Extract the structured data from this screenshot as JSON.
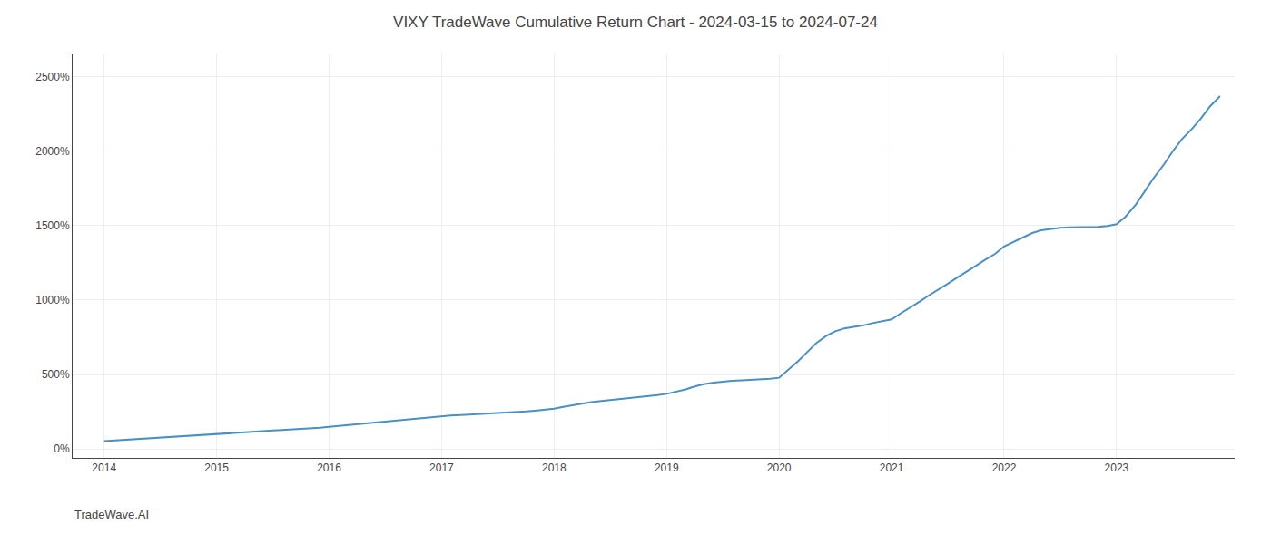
{
  "chart_data": {
    "type": "line",
    "title": "VIXY TradeWave Cumulative Return Chart - 2024-03-15 to 2024-07-24",
    "annotations": [
      "TradeWave.AI"
    ],
    "color": "#4a90c4",
    "grid": true,
    "xlim": [
      2013.72,
      2024.05
    ],
    "xticks": [
      2014,
      2015,
      2016,
      2017,
      2018,
      2019,
      2020,
      2021,
      2022,
      2023
    ],
    "ylim": [
      -60,
      2650
    ],
    "yticks": [
      {
        "value": 0,
        "label": "0%"
      },
      {
        "value": 500,
        "label": "500%"
      },
      {
        "value": 1000,
        "label": "1000%"
      },
      {
        "value": 1500,
        "label": "1500%"
      },
      {
        "value": 2000,
        "label": "2000%"
      },
      {
        "value": 2500,
        "label": "2500%"
      }
    ],
    "x": [
      2014.0,
      2014.08,
      2014.17,
      2014.25,
      2014.33,
      2014.42,
      2014.5,
      2014.58,
      2014.67,
      2014.75,
      2014.83,
      2014.92,
      2015.0,
      2015.08,
      2015.17,
      2015.25,
      2015.33,
      2015.42,
      2015.5,
      2015.58,
      2015.67,
      2015.75,
      2015.83,
      2015.92,
      2016.0,
      2016.08,
      2016.17,
      2016.25,
      2016.33,
      2016.42,
      2016.5,
      2016.58,
      2016.67,
      2016.75,
      2016.83,
      2016.92,
      2017.0,
      2017.08,
      2017.17,
      2017.25,
      2017.33,
      2017.42,
      2017.5,
      2017.58,
      2017.67,
      2017.75,
      2017.83,
      2017.92,
      2018.0,
      2018.08,
      2018.17,
      2018.25,
      2018.33,
      2018.42,
      2018.5,
      2018.58,
      2018.67,
      2018.75,
      2018.83,
      2018.92,
      2019.0,
      2019.08,
      2019.17,
      2019.25,
      2019.33,
      2019.42,
      2019.5,
      2019.58,
      2019.67,
      2019.75,
      2019.83,
      2019.92,
      2020.0,
      2020.08,
      2020.17,
      2020.25,
      2020.33,
      2020.42,
      2020.5,
      2020.58,
      2020.67,
      2020.75,
      2020.83,
      2020.92,
      2021.0,
      2021.08,
      2021.17,
      2021.25,
      2021.33,
      2021.42,
      2021.5,
      2021.58,
      2021.67,
      2021.75,
      2021.83,
      2021.92,
      2022.0,
      2022.08,
      2022.17,
      2022.25,
      2022.33,
      2022.42,
      2022.5,
      2022.58,
      2022.67,
      2022.75,
      2022.83,
      2022.92,
      2023.0,
      2023.08,
      2023.17,
      2023.25,
      2023.33,
      2023.42,
      2023.5,
      2023.58,
      2023.67,
      2023.75,
      2023.83,
      2023.92
    ],
    "values": [
      52,
      56,
      60,
      64,
      68,
      72,
      76,
      80,
      84,
      88,
      92,
      96,
      100,
      105,
      110,
      115,
      118,
      121,
      124,
      127,
      130,
      133,
      137,
      142,
      148,
      154,
      160,
      166,
      172,
      178,
      184,
      190,
      196,
      202,
      208,
      214,
      220,
      225,
      228,
      231,
      234,
      237,
      240,
      244,
      248,
      252,
      257,
      263,
      270,
      282,
      294,
      306,
      315,
      322,
      328,
      334,
      340,
      347,
      354,
      362,
      370,
      385,
      400,
      420,
      435,
      445,
      452,
      457,
      460,
      463,
      467,
      472,
      478,
      530,
      590,
      650,
      710,
      760,
      790,
      810,
      820,
      830,
      845,
      858,
      870,
      910,
      950,
      990,
      1030,
      1070,
      1110,
      1150,
      1190,
      1230,
      1270,
      1310,
      1360,
      1390,
      1420,
      1450,
      1468,
      1478,
      1485,
      1488,
      1489,
      1490,
      1492,
      1498,
      1510,
      1560,
      1640,
      1730,
      1820,
      1910,
      2000,
      2080,
      2150,
      2220,
      2300,
      2370
    ]
  }
}
